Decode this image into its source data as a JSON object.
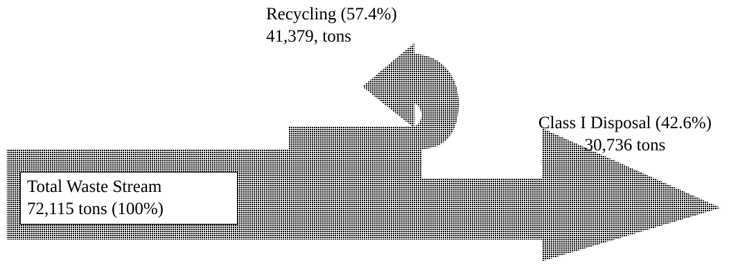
{
  "recycling": {
    "name": "Recycling (57.4%)",
    "amount": "41,379, tons"
  },
  "disposal": {
    "name": "Class I Disposal (42.6%)",
    "amount": "30,736 tons"
  },
  "total": {
    "name": "Total Waste Stream",
    "amount": "72,115 tons (100%)"
  },
  "colors": {
    "dot": "#000000",
    "background": "#ffffff"
  }
}
